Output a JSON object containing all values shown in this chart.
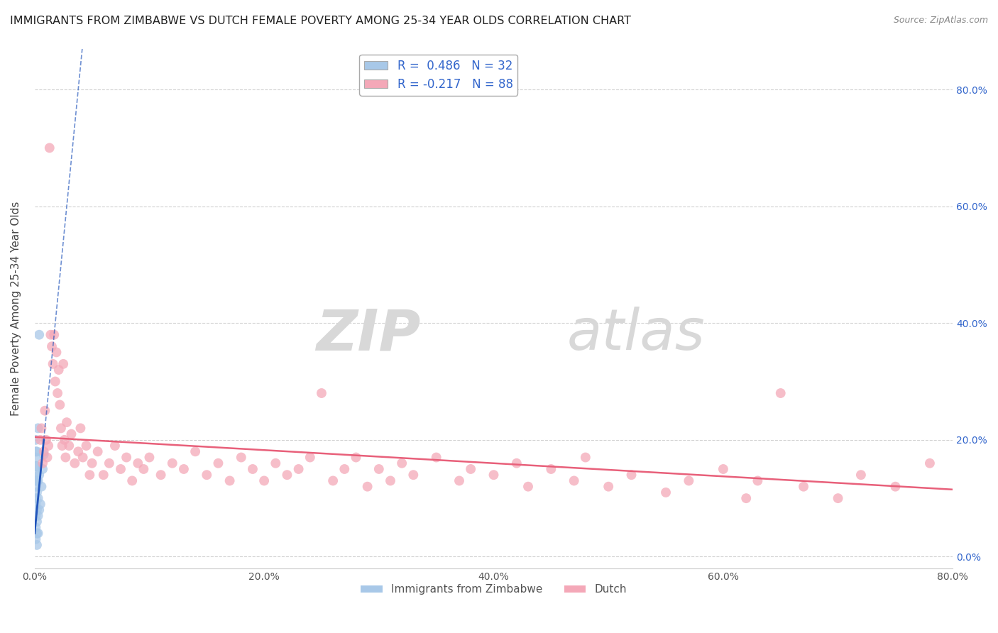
{
  "title": "IMMIGRANTS FROM ZIMBABWE VS DUTCH FEMALE POVERTY AMONG 25-34 YEAR OLDS CORRELATION CHART",
  "source": "Source: ZipAtlas.com",
  "ylabel": "Female Poverty Among 25-34 Year Olds",
  "xlim": [
    0.0,
    0.8
  ],
  "ylim": [
    -0.02,
    0.87
  ],
  "yticks": [
    0.0,
    0.2,
    0.4,
    0.6,
    0.8
  ],
  "xticks": [
    0.0,
    0.2,
    0.4,
    0.6,
    0.8
  ],
  "zimbabwe_R": 0.486,
  "zimbabwe_N": 32,
  "dutch_R": -0.217,
  "dutch_N": 88,
  "zimbabwe_color": "#a8c8e8",
  "dutch_color": "#f4a8b8",
  "zimbabwe_line_color": "#2255bb",
  "dutch_line_color": "#e8607a",
  "background_color": "#ffffff",
  "grid_color": "#cccccc",
  "watermark_zip": "ZIP",
  "watermark_atlas": "atlas",
  "legend_label_zimbabwe": "Immigrants from Zimbabwe",
  "legend_label_dutch": "Dutch",
  "title_fontsize": 11.5,
  "axis_label_fontsize": 11,
  "tick_fontsize": 10,
  "tick_color": "#3366cc",
  "zimbabwe_points": [
    [
      0.001,
      0.03
    ],
    [
      0.001,
      0.05
    ],
    [
      0.001,
      0.07
    ],
    [
      0.001,
      0.09
    ],
    [
      0.001,
      0.1
    ],
    [
      0.001,
      0.12
    ],
    [
      0.001,
      0.13
    ],
    [
      0.001,
      0.14
    ],
    [
      0.001,
      0.155
    ],
    [
      0.001,
      0.17
    ],
    [
      0.001,
      0.18
    ],
    [
      0.001,
      0.2
    ],
    [
      0.002,
      0.02
    ],
    [
      0.002,
      0.04
    ],
    [
      0.002,
      0.06
    ],
    [
      0.002,
      0.08
    ],
    [
      0.002,
      0.11
    ],
    [
      0.002,
      0.13
    ],
    [
      0.002,
      0.155
    ],
    [
      0.002,
      0.18
    ],
    [
      0.003,
      0.04
    ],
    [
      0.003,
      0.07
    ],
    [
      0.003,
      0.1
    ],
    [
      0.003,
      0.13
    ],
    [
      0.003,
      0.22
    ],
    [
      0.004,
      0.08
    ],
    [
      0.004,
      0.14
    ],
    [
      0.004,
      0.38
    ],
    [
      0.005,
      0.09
    ],
    [
      0.006,
      0.12
    ],
    [
      0.007,
      0.15
    ],
    [
      0.008,
      0.175
    ]
  ],
  "dutch_points": [
    [
      0.005,
      0.2
    ],
    [
      0.006,
      0.22
    ],
    [
      0.007,
      0.16
    ],
    [
      0.008,
      0.18
    ],
    [
      0.009,
      0.25
    ],
    [
      0.01,
      0.2
    ],
    [
      0.011,
      0.17
    ],
    [
      0.012,
      0.19
    ],
    [
      0.013,
      0.7
    ],
    [
      0.014,
      0.38
    ],
    [
      0.015,
      0.36
    ],
    [
      0.016,
      0.33
    ],
    [
      0.017,
      0.38
    ],
    [
      0.018,
      0.3
    ],
    [
      0.019,
      0.35
    ],
    [
      0.02,
      0.28
    ],
    [
      0.021,
      0.32
    ],
    [
      0.022,
      0.26
    ],
    [
      0.023,
      0.22
    ],
    [
      0.024,
      0.19
    ],
    [
      0.025,
      0.33
    ],
    [
      0.026,
      0.2
    ],
    [
      0.027,
      0.17
    ],
    [
      0.028,
      0.23
    ],
    [
      0.03,
      0.19
    ],
    [
      0.032,
      0.21
    ],
    [
      0.035,
      0.16
    ],
    [
      0.038,
      0.18
    ],
    [
      0.04,
      0.22
    ],
    [
      0.042,
      0.17
    ],
    [
      0.045,
      0.19
    ],
    [
      0.048,
      0.14
    ],
    [
      0.05,
      0.16
    ],
    [
      0.055,
      0.18
    ],
    [
      0.06,
      0.14
    ],
    [
      0.065,
      0.16
    ],
    [
      0.07,
      0.19
    ],
    [
      0.075,
      0.15
    ],
    [
      0.08,
      0.17
    ],
    [
      0.085,
      0.13
    ],
    [
      0.09,
      0.16
    ],
    [
      0.095,
      0.15
    ],
    [
      0.1,
      0.17
    ],
    [
      0.11,
      0.14
    ],
    [
      0.12,
      0.16
    ],
    [
      0.13,
      0.15
    ],
    [
      0.14,
      0.18
    ],
    [
      0.15,
      0.14
    ],
    [
      0.16,
      0.16
    ],
    [
      0.17,
      0.13
    ],
    [
      0.18,
      0.17
    ],
    [
      0.19,
      0.15
    ],
    [
      0.2,
      0.13
    ],
    [
      0.21,
      0.16
    ],
    [
      0.22,
      0.14
    ],
    [
      0.23,
      0.15
    ],
    [
      0.24,
      0.17
    ],
    [
      0.25,
      0.28
    ],
    [
      0.26,
      0.13
    ],
    [
      0.27,
      0.15
    ],
    [
      0.28,
      0.17
    ],
    [
      0.29,
      0.12
    ],
    [
      0.3,
      0.15
    ],
    [
      0.31,
      0.13
    ],
    [
      0.32,
      0.16
    ],
    [
      0.33,
      0.14
    ],
    [
      0.35,
      0.17
    ],
    [
      0.37,
      0.13
    ],
    [
      0.38,
      0.15
    ],
    [
      0.4,
      0.14
    ],
    [
      0.42,
      0.16
    ],
    [
      0.43,
      0.12
    ],
    [
      0.45,
      0.15
    ],
    [
      0.47,
      0.13
    ],
    [
      0.48,
      0.17
    ],
    [
      0.5,
      0.12
    ],
    [
      0.52,
      0.14
    ],
    [
      0.55,
      0.11
    ],
    [
      0.57,
      0.13
    ],
    [
      0.6,
      0.15
    ],
    [
      0.62,
      0.1
    ],
    [
      0.63,
      0.13
    ],
    [
      0.65,
      0.28
    ],
    [
      0.67,
      0.12
    ],
    [
      0.7,
      0.1
    ],
    [
      0.72,
      0.14
    ],
    [
      0.75,
      0.12
    ],
    [
      0.78,
      0.16
    ]
  ],
  "zim_trend_x0": 0.0,
  "zim_trend_y0": 0.04,
  "zim_trend_x1": 0.008,
  "zim_trend_y1": 0.2,
  "dutch_trend_x0": 0.0,
  "dutch_trend_y0": 0.205,
  "dutch_trend_x1": 0.8,
  "dutch_trend_y1": 0.115
}
